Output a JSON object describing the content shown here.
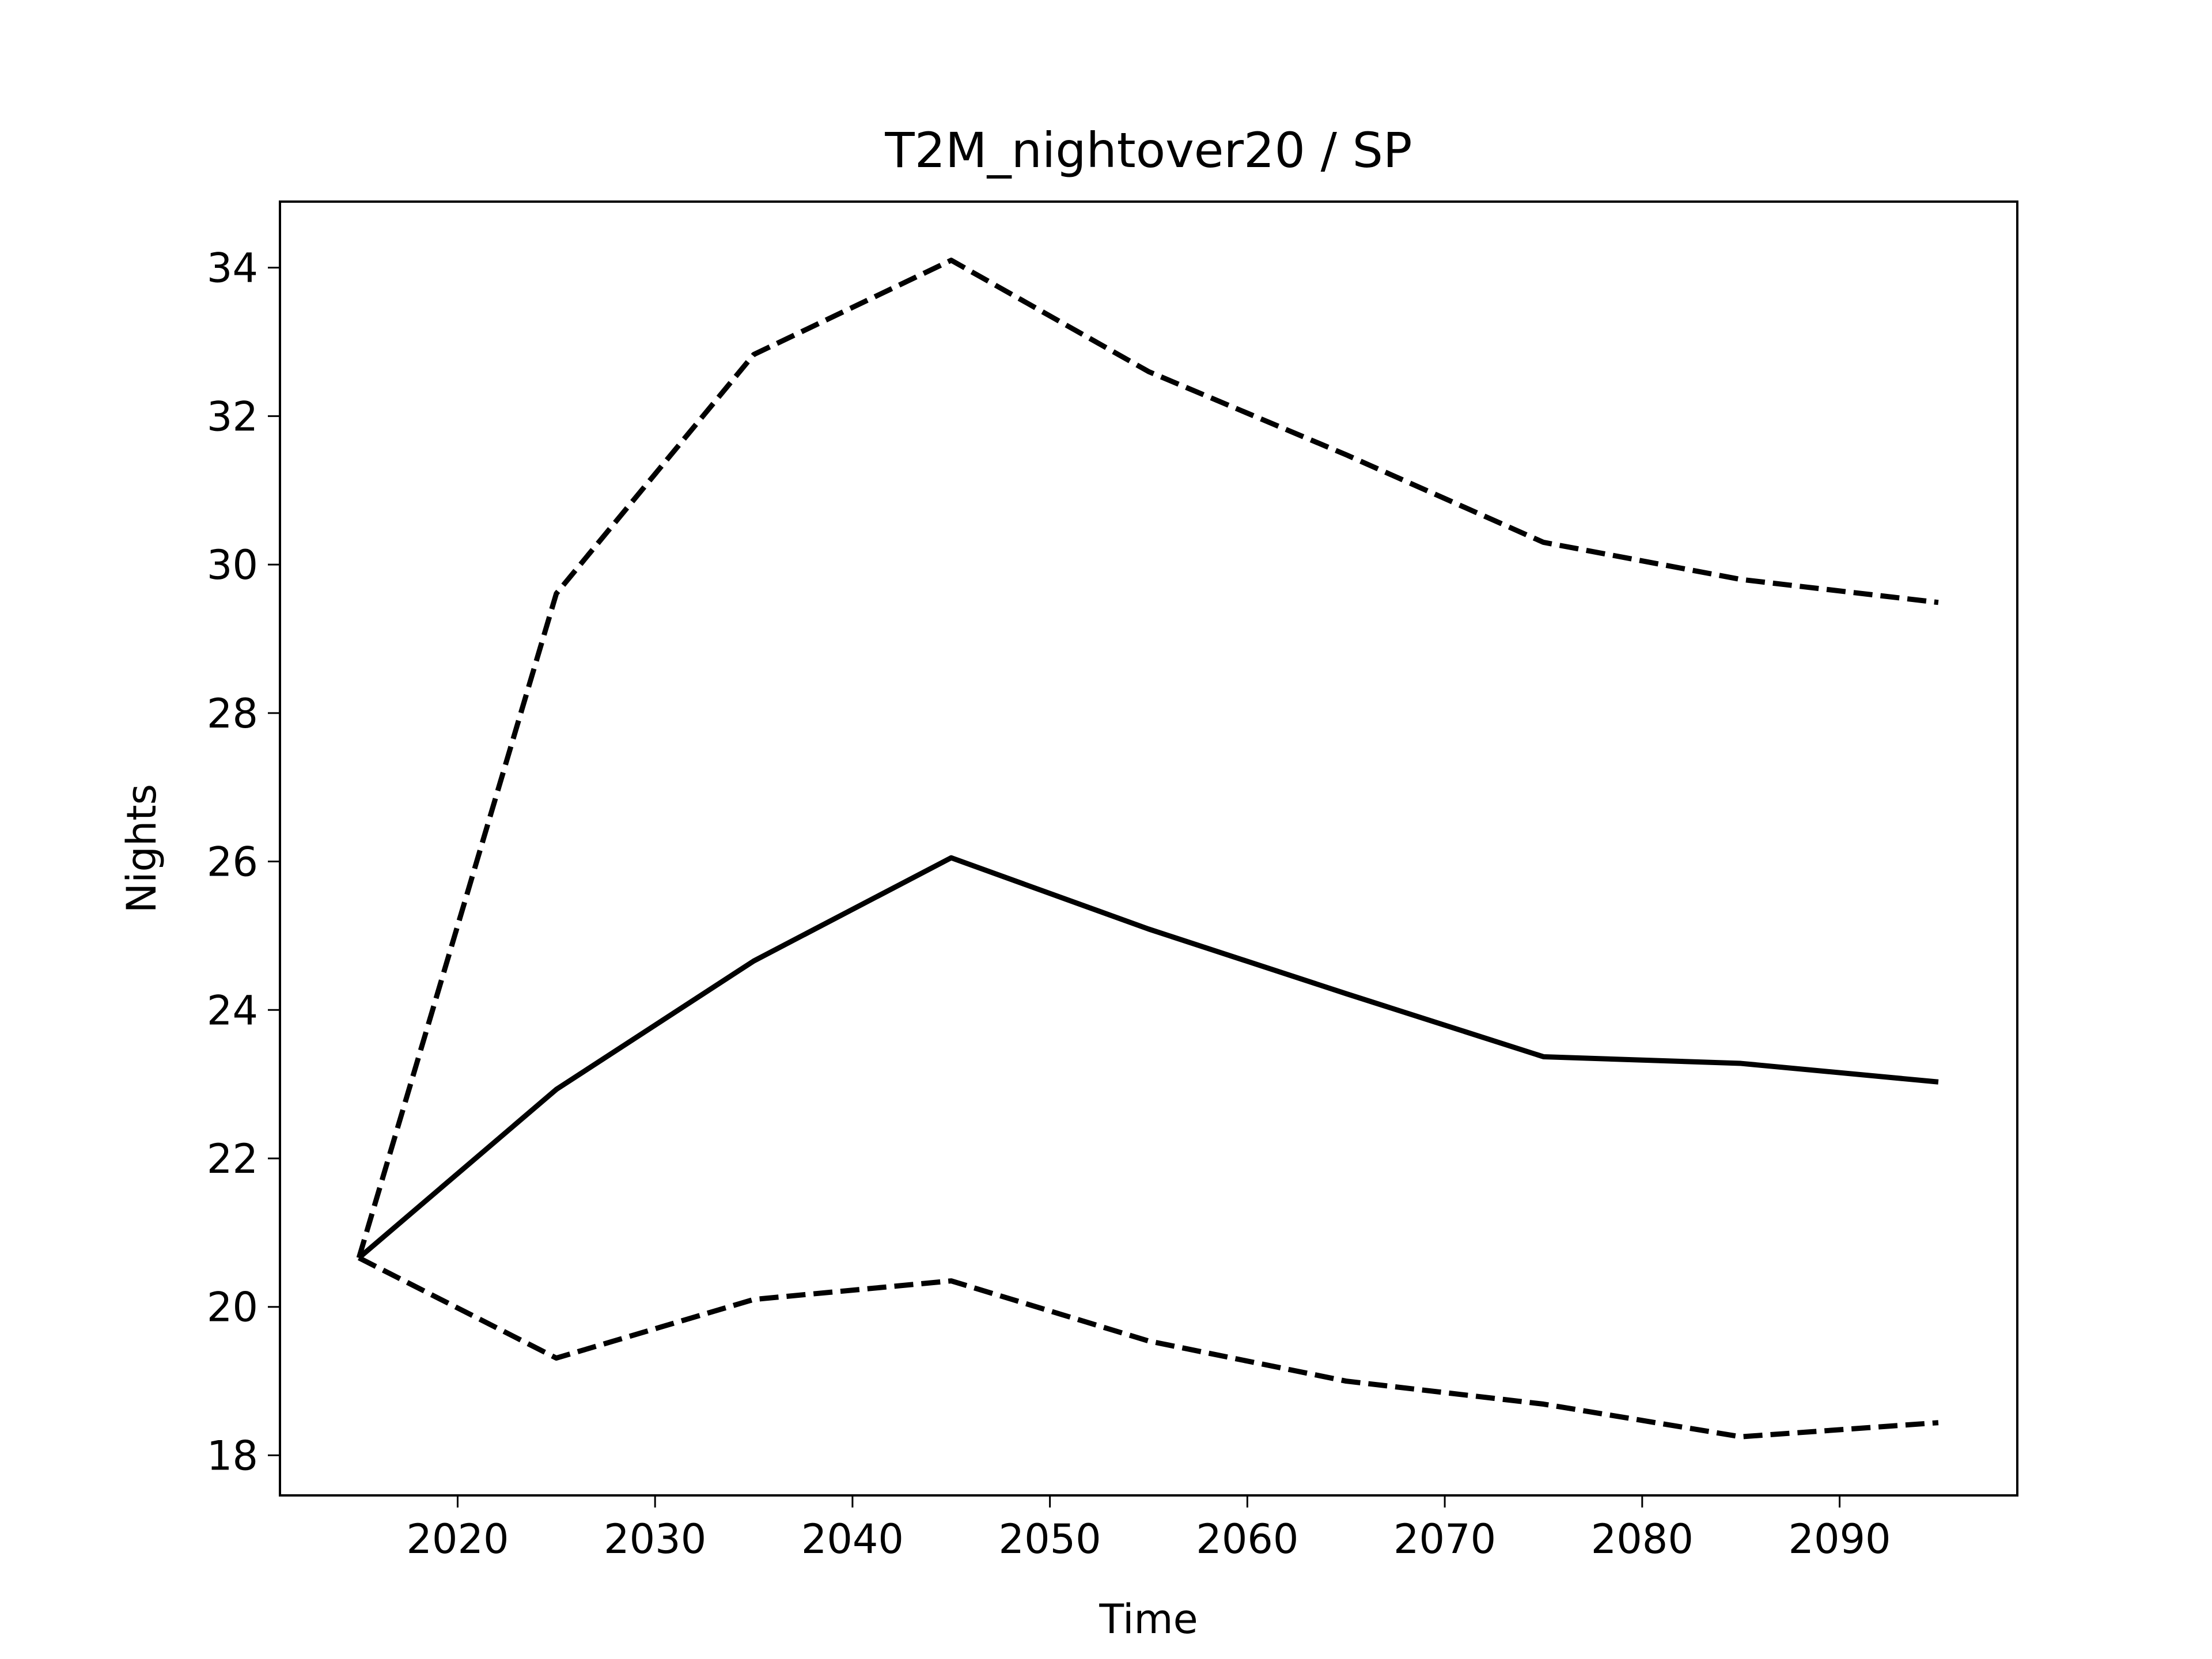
{
  "chart_data": {
    "type": "line",
    "title": "T2M_nightover20 / SP",
    "xlabel": "Time",
    "ylabel": "Nights",
    "x": [
      2015,
      2025,
      2035,
      2045,
      2055,
      2065,
      2075,
      2085,
      2095
    ],
    "series": [
      {
        "color": "#000000",
        "style": "solid",
        "values": [
          20.66,
          22.93,
          24.66,
          26.05,
          25.09,
          24.22,
          23.37,
          23.28,
          23.03
        ]
      },
      {
        "color": "#000000",
        "style": "dashed",
        "values": [
          20.66,
          29.61,
          32.83,
          34.1,
          32.6,
          31.48,
          30.3,
          29.8,
          29.49
        ]
      },
      {
        "color": "#000000",
        "style": "dashed",
        "values": [
          20.66,
          19.31,
          20.1,
          20.35,
          19.54,
          19.0,
          18.69,
          18.25,
          18.44
        ]
      }
    ],
    "xlim": [
      2011,
      2099
    ],
    "ylim": [
      17.46,
      34.89
    ],
    "xticks": [
      2020,
      2030,
      2040,
      2050,
      2060,
      2070,
      2080,
      2090
    ],
    "yticks": [
      18,
      20,
      22,
      24,
      26,
      28,
      30,
      32,
      34
    ],
    "grid": false
  }
}
